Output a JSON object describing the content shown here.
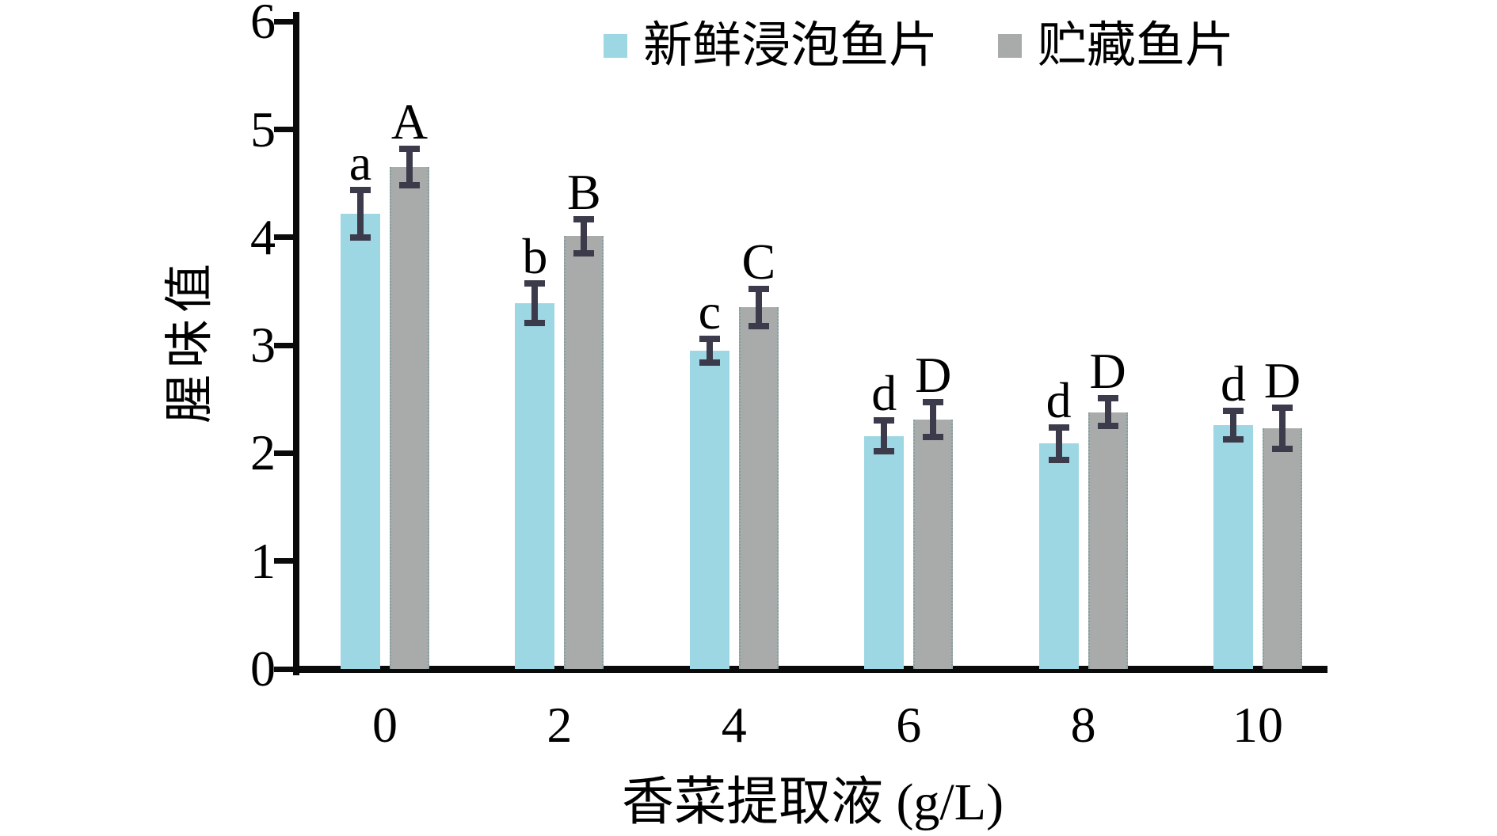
{
  "chart_data": {
    "type": "bar",
    "title": "",
    "xlabel": "香菜提取液 (g/L)",
    "ylabel": "腥味值",
    "categories": [
      "0",
      "2",
      "4",
      "6",
      "8",
      "10"
    ],
    "ylim": [
      0,
      6
    ],
    "yticks": [
      0,
      1,
      2,
      3,
      4,
      5,
      6
    ],
    "grid": false,
    "legend_position": "top",
    "axis_color": "#0a0a0a",
    "error_bar_color": "#3b3b4b",
    "series": [
      {
        "name": "新鲜浸泡鱼片",
        "color": "#9ed7e4",
        "values": [
          4.22,
          3.39,
          2.95,
          2.16,
          2.09,
          2.26
        ],
        "errors": [
          0.25,
          0.21,
          0.14,
          0.17,
          0.18,
          0.16
        ],
        "sig_letters": [
          "a",
          "b",
          "c",
          "d",
          "d",
          "d"
        ]
      },
      {
        "name": "贮藏鱼片",
        "color": "#a9abaa",
        "values": [
          4.65,
          4.01,
          3.35,
          2.31,
          2.38,
          2.23
        ],
        "errors": [
          0.2,
          0.19,
          0.2,
          0.19,
          0.16,
          0.22
        ],
        "sig_letters": [
          "A",
          "B",
          "C",
          "D",
          "D",
          "D"
        ]
      }
    ]
  }
}
